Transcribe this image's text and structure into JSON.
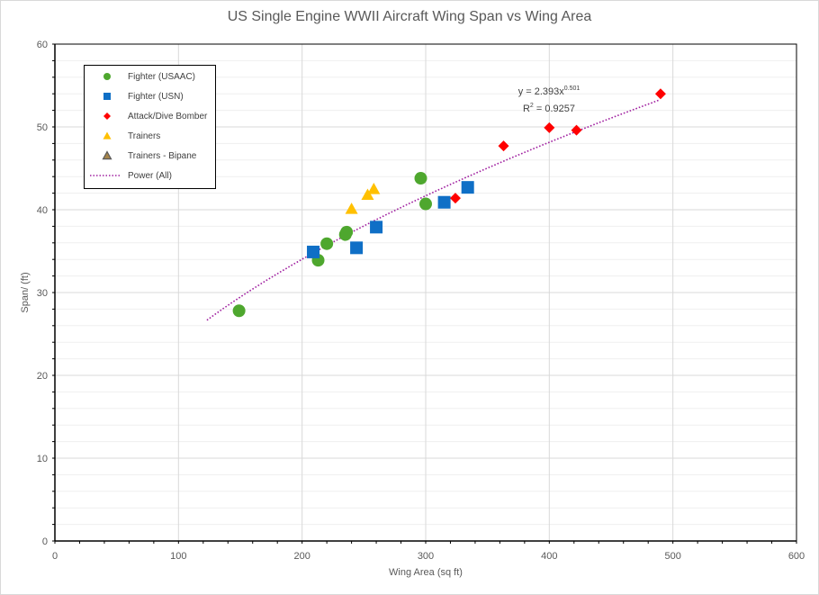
{
  "chart_data": {
    "type": "scatter",
    "title": "US Single Engine WWII Aircraft Wing  Span vs Wing Area",
    "xlabel": "Wing Area (sq ft)",
    "ylabel": "Span/ (ft)",
    "xlim": [
      0,
      600
    ],
    "ylim": [
      0,
      60
    ],
    "x_ticks": [
      0,
      100,
      200,
      300,
      400,
      500,
      600
    ],
    "y_ticks": [
      0,
      10,
      20,
      30,
      40,
      50,
      60
    ],
    "grid": true,
    "legend_position": "upper-left-inside",
    "series": [
      {
        "name": "Fighter (USAAC)",
        "marker": "circle",
        "color": "#4ea72e",
        "points": [
          [
            149,
            27.8
          ],
          [
            213,
            33.9
          ],
          [
            220,
            35.9
          ],
          [
            236,
            37.3
          ],
          [
            235,
            37.0
          ],
          [
            296,
            43.8
          ],
          [
            300,
            40.7
          ]
        ]
      },
      {
        "name": "Fighter (USN)",
        "marker": "square",
        "color": "#0f6fc6",
        "points": [
          [
            209,
            34.9
          ],
          [
            244,
            35.4
          ],
          [
            260,
            37.9
          ],
          [
            315,
            40.9
          ],
          [
            334,
            42.7
          ]
        ]
      },
      {
        "name": "Attack/Dive Bomber",
        "marker": "diamond",
        "color": "#ff0000",
        "points": [
          [
            324,
            41.4
          ],
          [
            363,
            47.7
          ],
          [
            400,
            49.9
          ],
          [
            422,
            49.6
          ],
          [
            490,
            54.0
          ]
        ]
      },
      {
        "name": "Trainers",
        "marker": "triangle",
        "color": "#ffc000",
        "points": [
          [
            240,
            40.1
          ],
          [
            253,
            41.8
          ],
          [
            258,
            42.5
          ]
        ]
      },
      {
        "name": "Trainers - Bipane",
        "marker": "triangle",
        "color": "#a5844a",
        "edge": "#595959",
        "points": []
      },
      {
        "name": "Power (All)",
        "type": "trendline",
        "style": "dotted",
        "color": "#a020a0",
        "equation": {
          "a": 2.393,
          "b": 0.501
        },
        "x_range": [
          123,
          490
        ]
      }
    ],
    "annotations": {
      "equation": "y = 2.393x",
      "equation_exp": "0.501",
      "r2_label": "R",
      "r2_exp": "2",
      "r2_value": " = 0.9257"
    }
  }
}
